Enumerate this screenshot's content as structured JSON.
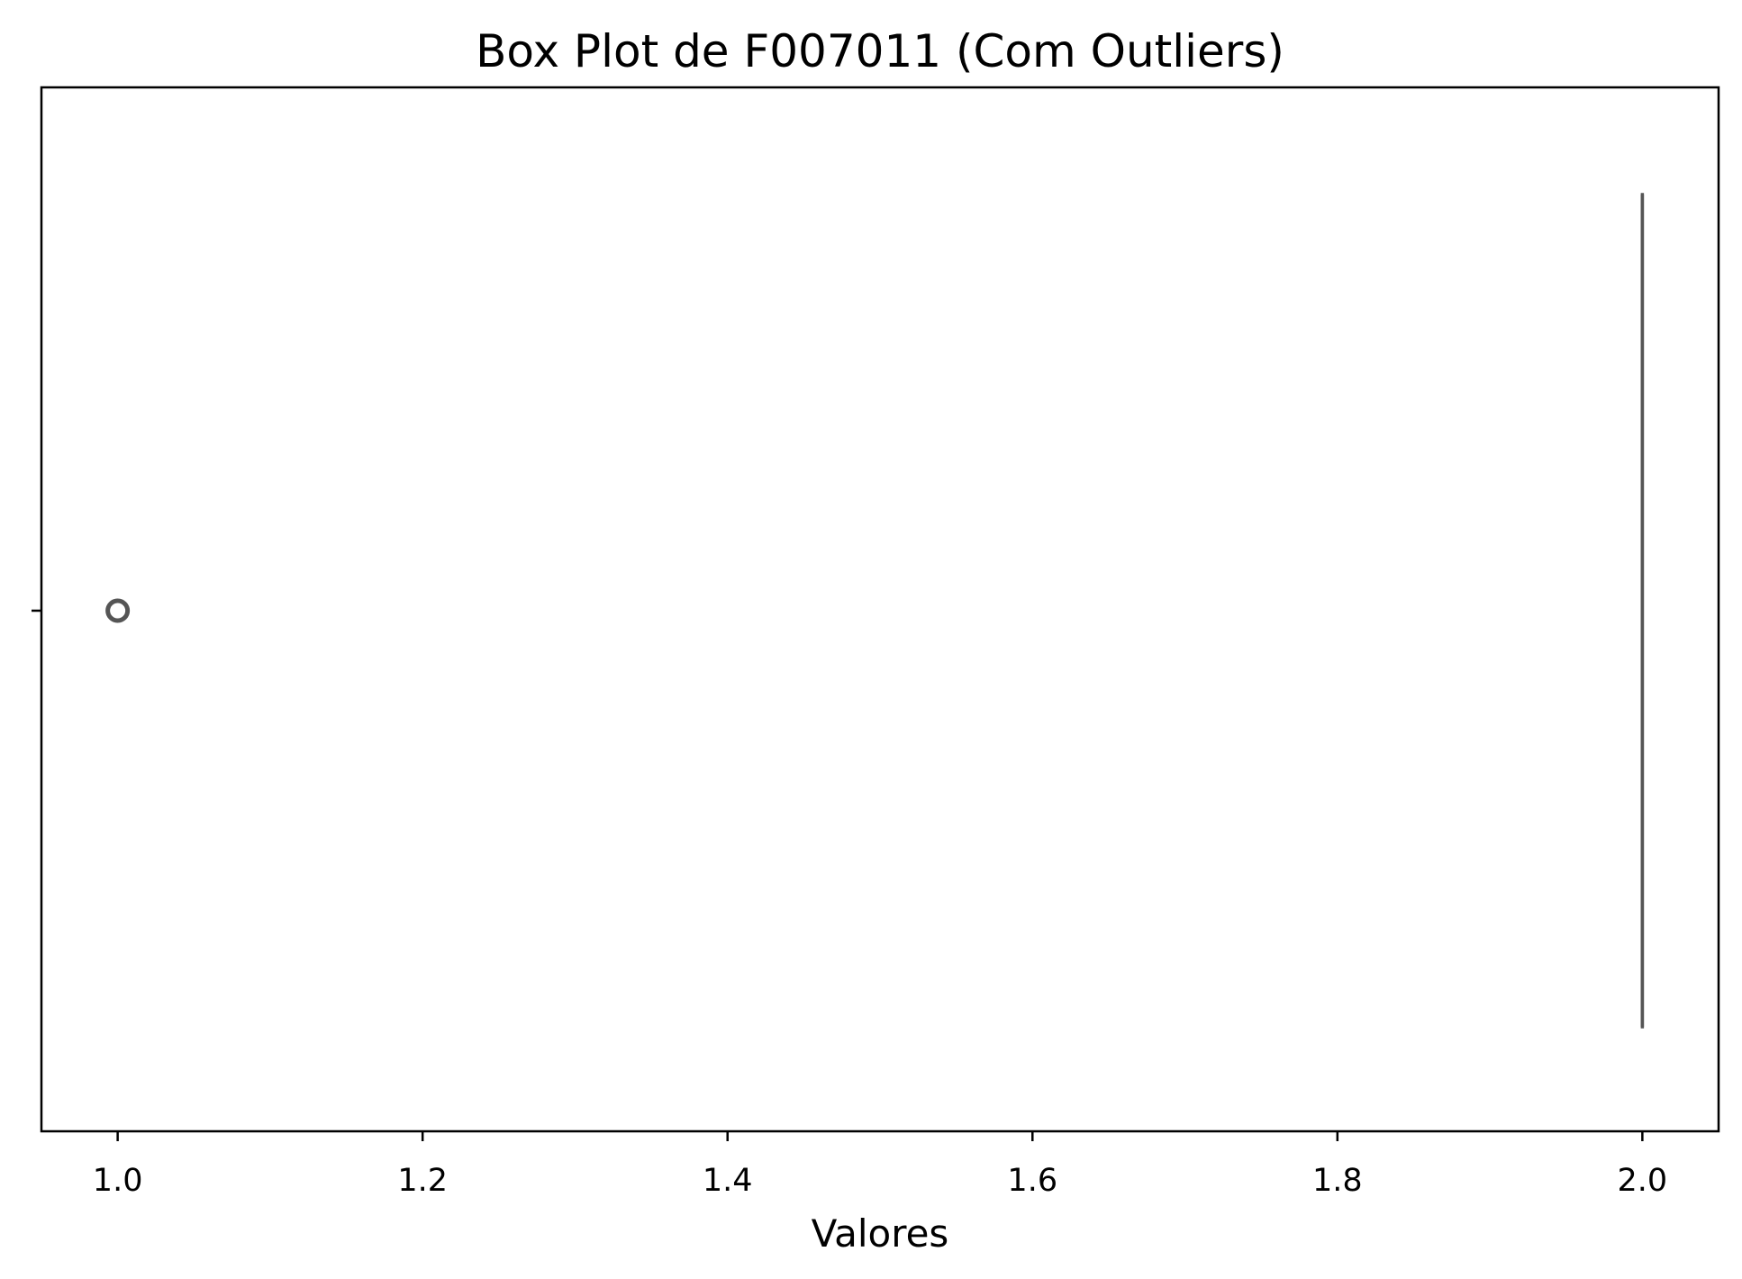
{
  "chart_data": {
    "type": "boxplot",
    "orientation": "horizontal",
    "title": "Box Plot de F007011 (Com Outliers)",
    "xlabel": "Valores",
    "ylabel": "",
    "xlim": [
      0.95,
      2.05
    ],
    "xticks": [
      1.0,
      1.2,
      1.4,
      1.6,
      1.8,
      2.0
    ],
    "xtick_labels": [
      "1.0",
      "1.2",
      "1.4",
      "1.6",
      "1.8",
      "2.0"
    ],
    "grid": false,
    "legend": "none",
    "box": {
      "whisker_low": 2.0,
      "q1": 2.0,
      "median": 2.0,
      "q3": 2.0,
      "whisker_high": 2.0
    },
    "outliers": [
      1.0
    ],
    "colors": {
      "box_line": "#555555",
      "axes": "#000000",
      "background": "#ffffff"
    }
  }
}
